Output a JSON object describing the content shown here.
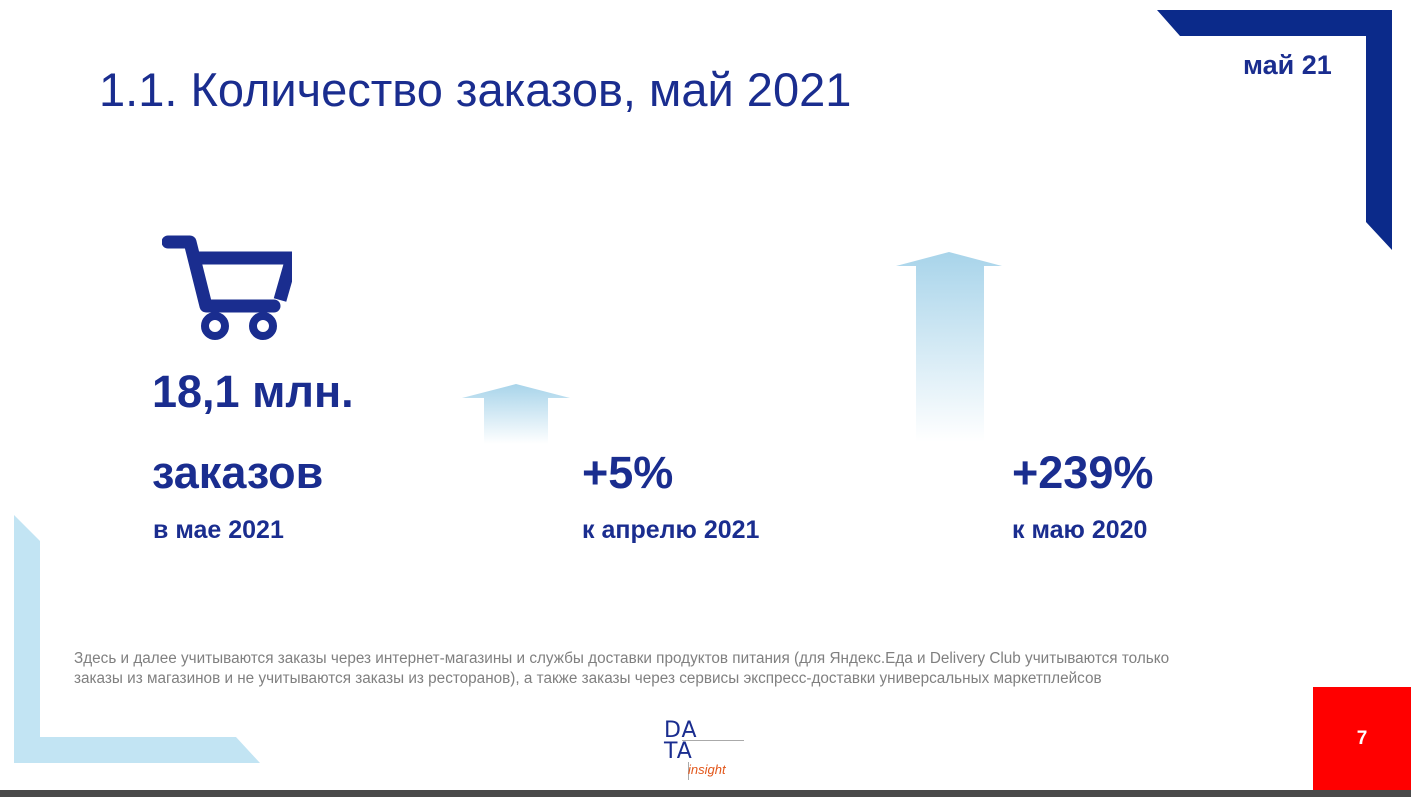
{
  "slide": {
    "title": "1.1. Количество заказов, май 2021",
    "period_label": "май 21",
    "page_number": "7"
  },
  "metrics": [
    {
      "value": "18,1 млн.",
      "unit": "заказов",
      "caption": "в мае 2021",
      "icon": "shopping-cart-icon"
    },
    {
      "value": "+5%",
      "caption": "к апрелю 2021",
      "icon": "up-arrow-icon"
    },
    {
      "value": "+239%",
      "caption": "к маю 2020",
      "icon": "up-arrow-icon"
    }
  ],
  "footnote": "Здесь и далее учитываются заказы через интернет-магазины и службы доставки продуктов питания (для Яндекс.Еда и Delivery Club учитываются только заказы из магазинов и не учитываются заказы из ресторанов), а также заказы через сервисы экспресс-доставки универсальных маркетплейсов",
  "logo": {
    "line1": "DA",
    "line2": "TA",
    "subtitle": "insight"
  },
  "colors": {
    "brand_blue": "#1a2d8f",
    "corner_navy": "#0b2a8a",
    "light_blue": "#b8dff0",
    "badge_red": "#ff0000",
    "footnote_gray": "#808080"
  }
}
